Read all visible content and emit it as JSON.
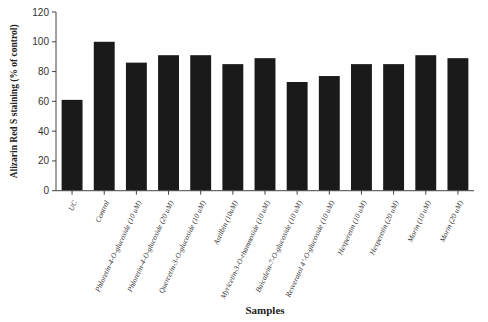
{
  "chart_data": {
    "type": "bar",
    "categories": [
      "UC",
      "Control",
      "Phloretin-4-O-glucoside (10 uM)",
      "Phloretin-4-O-glucoside (20 uM)",
      "Quercetin-3-O-glucoside (10 uM)",
      "Astilbin (10uM)",
      "Myricetin-3-O-rhamnoside (10 uM)",
      "Baicalein-7-O-glucoside (10 uM)",
      "Resveratol 4’-O-glucoside (10 uM)",
      "Hesperetin (10 uM)",
      "Hesperetin (20 uM)",
      "Morin (10 uM)",
      "Morin (20 uM)"
    ],
    "values": [
      61,
      100,
      86,
      91,
      91,
      85,
      89,
      73,
      77,
      85,
      85,
      91,
      89
    ],
    "color": "#1a1a1a",
    "xlabel": "Samples",
    "ylabel": "Alizarin Red S staining (% of control)",
    "ylim": [
      0,
      120
    ],
    "yticks": [
      0,
      20,
      40,
      60,
      80,
      100,
      120
    ],
    "grid": false
  }
}
